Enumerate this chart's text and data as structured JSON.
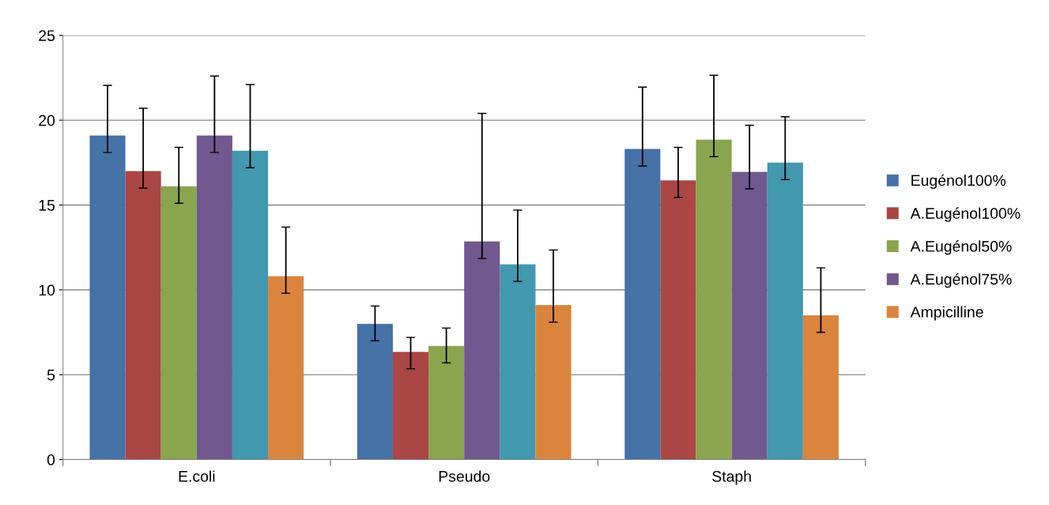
{
  "chart_data": {
    "type": "bar",
    "categories": [
      "E.coli",
      "Pseudo",
      "Staph"
    ],
    "series": [
      {
        "name": "Eugénol100%",
        "color": "#4572a7",
        "values": [
          19.1,
          8.0,
          18.3
        ],
        "errors": [
          [
            18.1,
            22.05
          ],
          [
            7.0,
            9.05
          ],
          [
            17.3,
            21.95
          ]
        ]
      },
      {
        "name": "A.Eugénol100%",
        "color": "#aa4643",
        "values": [
          17.0,
          6.35,
          16.45
        ],
        "errors": [
          [
            16.0,
            20.7
          ],
          [
            5.35,
            7.2
          ],
          [
            15.45,
            18.4
          ]
        ]
      },
      {
        "name": "A.Eugénol50%",
        "color": "#89a54e",
        "values": [
          16.1,
          6.7,
          18.85
        ],
        "errors": [
          [
            15.1,
            18.4
          ],
          [
            5.7,
            7.75
          ],
          [
            17.85,
            22.65
          ]
        ]
      },
      {
        "name": "A.Eugénol75%",
        "color": "#71588f",
        "values": [
          19.1,
          12.85,
          16.95
        ],
        "errors": [
          [
            18.1,
            22.6
          ],
          [
            11.85,
            20.4
          ],
          [
            15.95,
            19.7
          ]
        ]
      },
      {
        "color": "#4198af",
        "values": [
          18.2,
          11.5,
          17.5
        ],
        "errors": [
          [
            17.2,
            22.1
          ],
          [
            10.5,
            14.7
          ],
          [
            16.5,
            20.2
          ]
        ]
      },
      {
        "name": "Ampicilline",
        "color": "#db843d",
        "values": [
          10.8,
          9.1,
          8.5
        ],
        "errors": [
          [
            9.8,
            13.7
          ],
          [
            8.1,
            12.35
          ],
          [
            7.5,
            11.3
          ]
        ]
      }
    ],
    "ylim": [
      0,
      25
    ],
    "yticks": [
      0,
      5,
      10,
      15,
      20,
      25
    ],
    "grid": "y",
    "legend": "right"
  }
}
